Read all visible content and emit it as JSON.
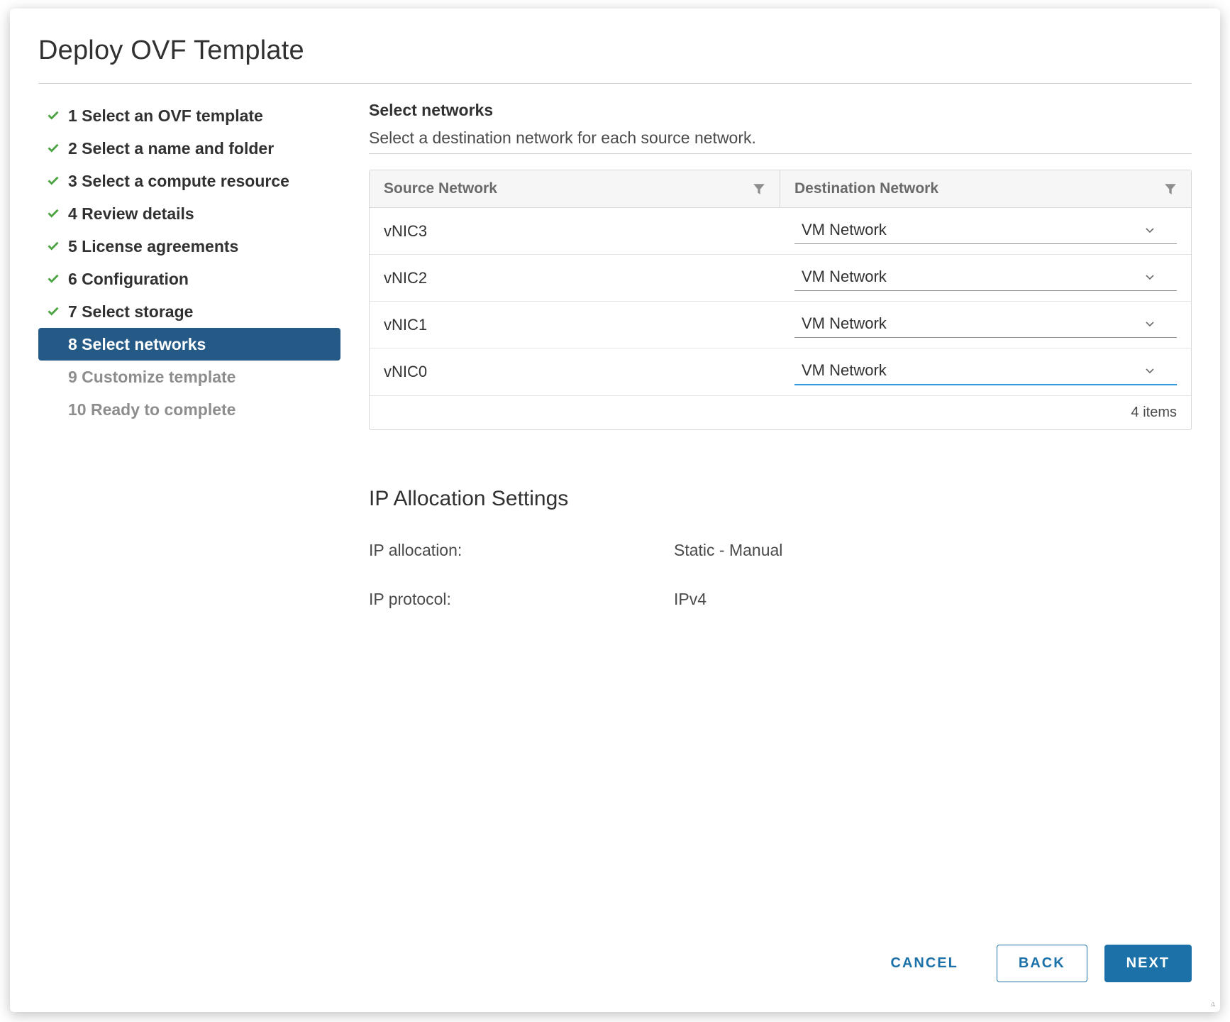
{
  "dialog": {
    "title": "Deploy OVF Template"
  },
  "colors": {
    "accent": "#1b71a8",
    "stepActiveBg": "#255986",
    "checkGreen": "#4aa340",
    "focusBlue": "#2e9ade",
    "border": "#d7d7d7",
    "textMuted": "#8d8d8d"
  },
  "steps": [
    {
      "num": "1",
      "label": "Select an OVF template",
      "state": "completed"
    },
    {
      "num": "2",
      "label": "Select a name and folder",
      "state": "completed"
    },
    {
      "num": "3",
      "label": "Select a compute resource",
      "state": "completed"
    },
    {
      "num": "4",
      "label": "Review details",
      "state": "completed"
    },
    {
      "num": "5",
      "label": "License agreements",
      "state": "completed"
    },
    {
      "num": "6",
      "label": "Configuration",
      "state": "completed"
    },
    {
      "num": "7",
      "label": "Select storage",
      "state": "completed"
    },
    {
      "num": "8",
      "label": "Select networks",
      "state": "current"
    },
    {
      "num": "9",
      "label": "Customize template",
      "state": "pending"
    },
    {
      "num": "10",
      "label": "Ready to complete",
      "state": "pending"
    }
  ],
  "content": {
    "title": "Select networks",
    "description": "Select a destination network for each source network.",
    "table": {
      "columns": {
        "source": "Source Network",
        "destination": "Destination Network"
      },
      "rows": [
        {
          "source": "vNIC3",
          "destination": "VM Network",
          "active": false
        },
        {
          "source": "vNIC2",
          "destination": "VM Network",
          "active": false
        },
        {
          "source": "vNIC1",
          "destination": "VM Network",
          "active": false
        },
        {
          "source": "vNIC0",
          "destination": "VM Network",
          "active": true
        }
      ],
      "footer_count_label": "4 items"
    },
    "ip": {
      "heading": "IP Allocation Settings",
      "allocation_label": "IP allocation:",
      "allocation_value": "Static - Manual",
      "protocol_label": "IP protocol:",
      "protocol_value": "IPv4"
    }
  },
  "buttons": {
    "cancel": "CANCEL",
    "back": "BACK",
    "next": "NEXT"
  }
}
